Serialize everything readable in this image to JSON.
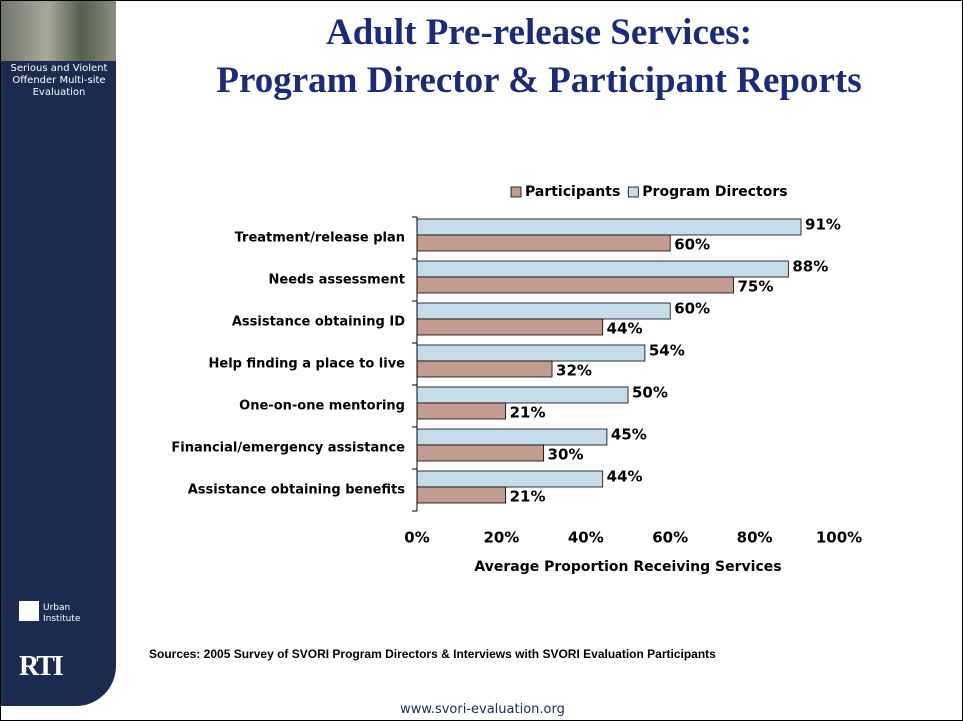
{
  "header": {
    "title": [
      "Adult Pre-release Services:",
      "Program Director & Participant Reports"
    ]
  },
  "sidebar": {
    "caption": "Serious and Violent Offender Multi-site Evaluation",
    "urban": "Urban Institute",
    "rti": "RTI"
  },
  "chart_data": {
    "type": "hbar",
    "categories": [
      "Treatment/release plan",
      "Needs assessment",
      "Assistance obtaining ID",
      "Help finding a place to live",
      "One-on-one mentoring",
      "Financial/emergency assistance",
      "Assistance obtaining benefits"
    ],
    "series": [
      {
        "name": "Program Directors",
        "color": "#c6dceb",
        "values": [
          91,
          88,
          60,
          54,
          50,
          45,
          44
        ],
        "value_labels": [
          "91%",
          "88%",
          "60%",
          "54%",
          "50%",
          "45%",
          "44%"
        ]
      },
      {
        "name": "Participants",
        "color": "#c39c91",
        "values": [
          60,
          75,
          44,
          32,
          21,
          30,
          21
        ],
        "value_labels": [
          "60%",
          "75%",
          "44%",
          "32%",
          "21%",
          "30%",
          "21%"
        ]
      }
    ],
    "legend_order": [
      "Participants",
      "Program Directors"
    ],
    "legend": "top",
    "xlim": [
      0,
      100
    ],
    "xticks": [
      {
        "value": 0,
        "label": "0%"
      },
      {
        "value": 20,
        "label": "20%"
      },
      {
        "value": 40,
        "label": "40%"
      },
      {
        "value": 60,
        "label": "60%"
      },
      {
        "value": 80,
        "label": "80%"
      },
      {
        "value": 100,
        "label": "100%"
      }
    ],
    "xlabel": "Average Proportion Receiving Services"
  },
  "footer": {
    "source": "Sources: 2005 Survey of SVORI Program Directors & Interviews with SVORI Evaluation Participants",
    "url": "www.svori-evaluation.org"
  }
}
